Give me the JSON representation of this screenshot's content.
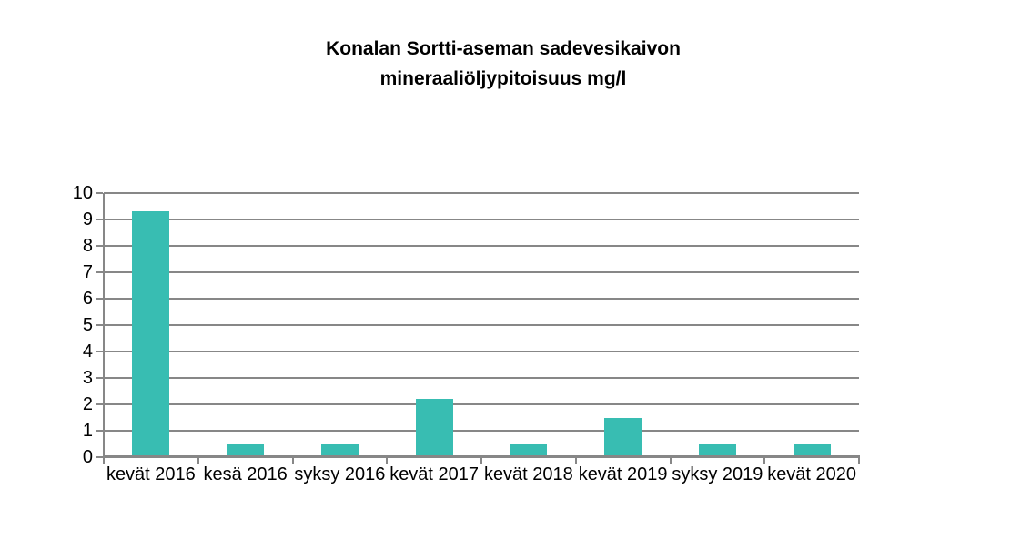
{
  "chart_data": {
    "type": "bar",
    "title": "Konalan Sortti-aseman sadevesikaivon mineraaliöljypitoisuus mg/l",
    "title_lines": [
      "Konalan Sortti-aseman sadevesikaivon",
      "mineraaliöljypitoisuus mg/l"
    ],
    "categories": [
      "kevät 2016",
      "kesä 2016",
      "syksy 2016",
      "kevät 2017",
      "kevät 2018",
      "kevät 2019",
      "syksy 2019",
      "kevät 2020"
    ],
    "values": [
      9.3,
      0.5,
      0.5,
      2.2,
      0.5,
      1.5,
      0.5,
      0.5
    ],
    "xlabel": "",
    "ylabel": "",
    "ylim": [
      0,
      10
    ],
    "y_ticks": [
      0,
      1,
      2,
      3,
      4,
      5,
      6,
      7,
      8,
      9,
      10
    ],
    "grid": true,
    "legend": false,
    "colors": {
      "bar": "#38bdb2",
      "grid": "#878787",
      "axis": "#878787",
      "text": "#000000",
      "background": "#ffffff"
    }
  }
}
